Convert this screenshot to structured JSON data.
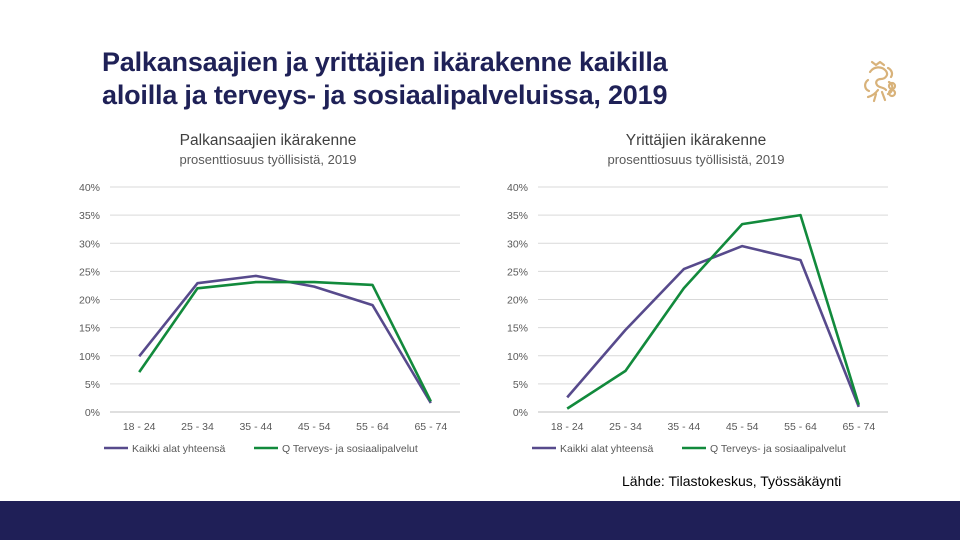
{
  "slide": {
    "title_line1": "Palkansaajien ja yrittäjien ikärakenne kaikilla",
    "title_line2": "aloilla ja terveys- ja sosiaalipalveluissa, 2019",
    "source": "Lähde: Tilastokeskus, Työssäkäynti"
  },
  "colors": {
    "series_all": "#574a8c",
    "series_health": "#128a3c",
    "title": "#1f2157",
    "footer": "#1f1f57",
    "logo": "#d8b27a"
  },
  "chart_data": [
    {
      "type": "line",
      "title": "Palkansaajien ikärakenne",
      "subtitle": "prosenttiosuus työllisistä, 2019",
      "categories": [
        "18 - 24",
        "25 - 34",
        "35 - 44",
        "45 - 54",
        "55 - 64",
        "65 - 74"
      ],
      "ylim": [
        0,
        40
      ],
      "yticks": [
        "0%",
        "5%",
        "10%",
        "15%",
        "20%",
        "25%",
        "30%",
        "35%",
        "40%"
      ],
      "grid": true,
      "legend_position": "bottom",
      "series": [
        {
          "name": "Kaikki alat yhteensä",
          "values": [
            9.9,
            22.9,
            24.2,
            22.3,
            19.0,
            1.6
          ]
        },
        {
          "name": "Q Terveys- ja sosiaalipalvelut",
          "values": [
            7.1,
            22.0,
            23.1,
            23.1,
            22.6,
            1.9
          ]
        }
      ]
    },
    {
      "type": "line",
      "title": "Yrittäjien ikärakenne",
      "subtitle": "prosenttiosuus työllisistä, 2019",
      "categories": [
        "18 - 24",
        "25 - 34",
        "35 - 44",
        "45 - 54",
        "55 - 64",
        "65 - 74"
      ],
      "ylim": [
        0,
        40
      ],
      "yticks": [
        "0%",
        "5%",
        "10%",
        "15%",
        "20%",
        "25%",
        "30%",
        "35%",
        "40%"
      ],
      "grid": true,
      "legend_position": "bottom",
      "series": [
        {
          "name": "Kaikki alat yhteensä",
          "values": [
            2.6,
            14.6,
            25.4,
            29.5,
            27.0,
            0.9
          ]
        },
        {
          "name": "Q Terveys- ja sosiaalipalvelut",
          "values": [
            0.6,
            7.3,
            22.0,
            33.4,
            35.0,
            1.3
          ]
        }
      ]
    }
  ]
}
